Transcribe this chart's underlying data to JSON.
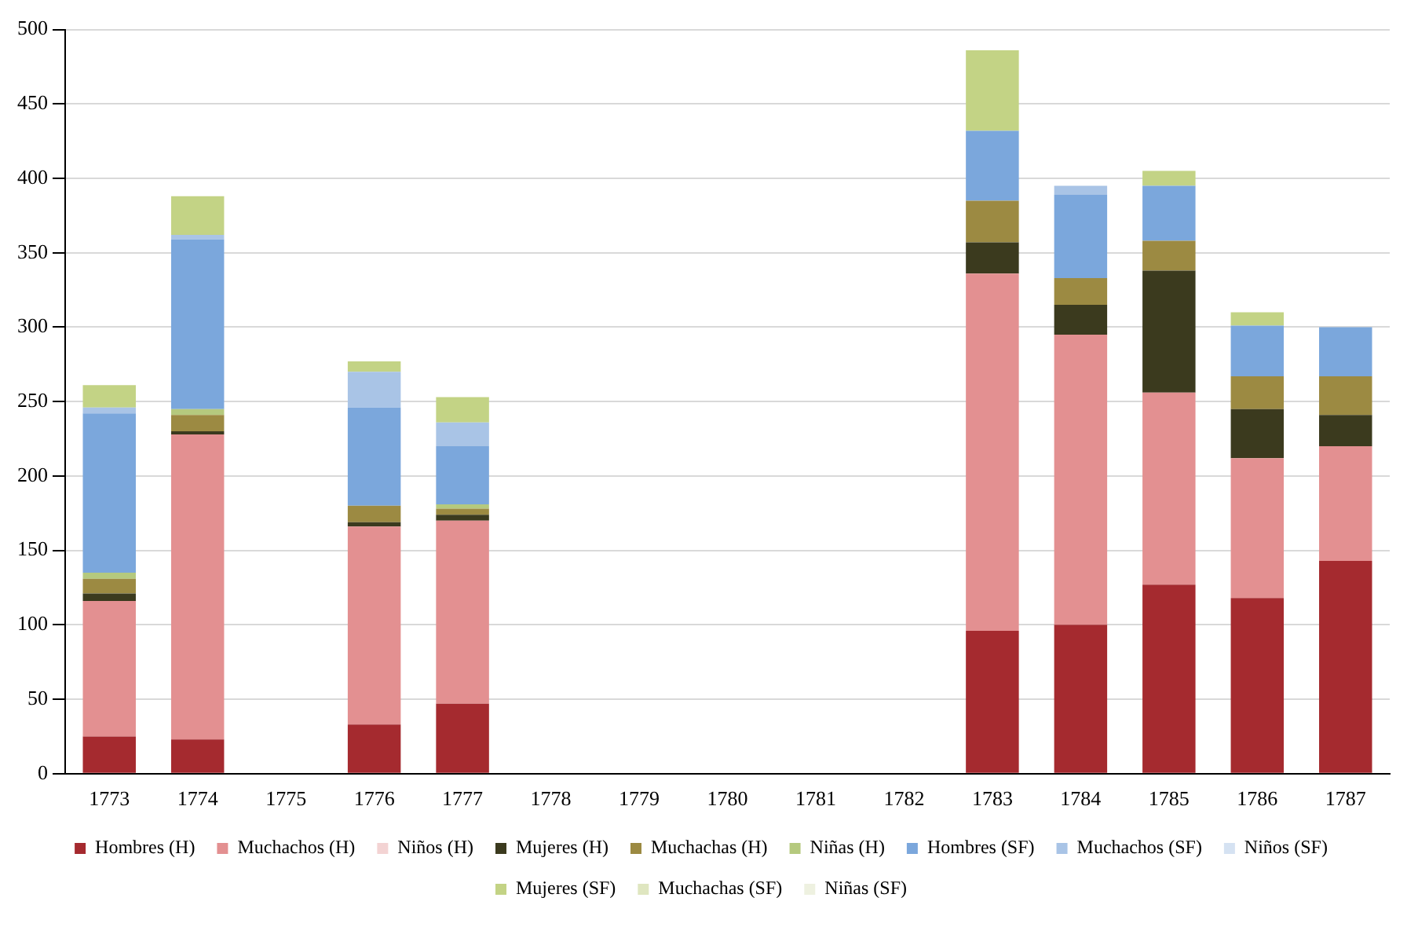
{
  "chart_data": {
    "type": "bar",
    "stacked": true,
    "categories": [
      "1773",
      "1774",
      "1775",
      "1776",
      "1777",
      "1778",
      "1779",
      "1780",
      "1781",
      "1782",
      "1783",
      "1784",
      "1785",
      "1786",
      "1787"
    ],
    "series": [
      {
        "name": "Hombres (H)",
        "color": "#a52a2f",
        "values": [
          25,
          23,
          0,
          33,
          47,
          0,
          0,
          0,
          0,
          0,
          96,
          100,
          127,
          118,
          143
        ]
      },
      {
        "name": "Muchachos (H)",
        "color": "#e39091",
        "values": [
          91,
          205,
          0,
          133,
          123,
          0,
          0,
          0,
          0,
          0,
          240,
          195,
          129,
          94,
          77
        ]
      },
      {
        "name": "Niños (H)",
        "color": "#f3d3d3",
        "values": [
          0,
          0,
          0,
          0,
          0,
          0,
          0,
          0,
          0,
          0,
          0,
          0,
          0,
          0,
          0
        ]
      },
      {
        "name": "Mujeres (H)",
        "color": "#3b3a1e",
        "values": [
          5,
          2,
          0,
          3,
          4,
          0,
          0,
          0,
          0,
          0,
          21,
          20,
          82,
          33,
          21
        ]
      },
      {
        "name": "Muchachas (H)",
        "color": "#9c8a42",
        "values": [
          10,
          11,
          0,
          11,
          4,
          0,
          0,
          0,
          0,
          0,
          28,
          18,
          20,
          22,
          26
        ]
      },
      {
        "name": "Niñas (H)",
        "color": "#b5c97e",
        "values": [
          4,
          4,
          0,
          0,
          3,
          0,
          0,
          0,
          0,
          0,
          0,
          0,
          0,
          0,
          0
        ]
      },
      {
        "name": "Hombres (SF)",
        "color": "#7ba7dc",
        "values": [
          107,
          114,
          0,
          66,
          39,
          0,
          0,
          0,
          0,
          0,
          47,
          56,
          37,
          34,
          33
        ]
      },
      {
        "name": "Muchachos (SF)",
        "color": "#a9c4e6",
        "values": [
          4,
          3,
          0,
          24,
          16,
          0,
          0,
          0,
          0,
          0,
          0,
          6,
          0,
          0,
          0
        ]
      },
      {
        "name": "Niños (SF)",
        "color": "#d5e2f2",
        "values": [
          0,
          0,
          0,
          0,
          0,
          0,
          0,
          0,
          0,
          0,
          0,
          0,
          0,
          0,
          0
        ]
      },
      {
        "name": "Mujeres (SF)",
        "color": "#c3d385",
        "values": [
          15,
          26,
          0,
          7,
          17,
          0,
          0,
          0,
          0,
          0,
          54,
          0,
          10,
          9,
          0
        ]
      },
      {
        "name": "Muchachas (SF)",
        "color": "#dfe6c0",
        "values": [
          0,
          0,
          0,
          0,
          0,
          0,
          0,
          0,
          0,
          0,
          0,
          0,
          0,
          0,
          0
        ]
      },
      {
        "name": "Niñas (SF)",
        "color": "#eef1e0",
        "values": [
          0,
          0,
          0,
          0,
          0,
          0,
          0,
          0,
          0,
          0,
          0,
          0,
          0,
          0,
          0
        ]
      }
    ],
    "ylim": [
      0,
      500
    ],
    "yticks": [
      0,
      50,
      100,
      150,
      200,
      250,
      300,
      350,
      400,
      450,
      500
    ],
    "grid": "y",
    "legend": "bottom"
  }
}
